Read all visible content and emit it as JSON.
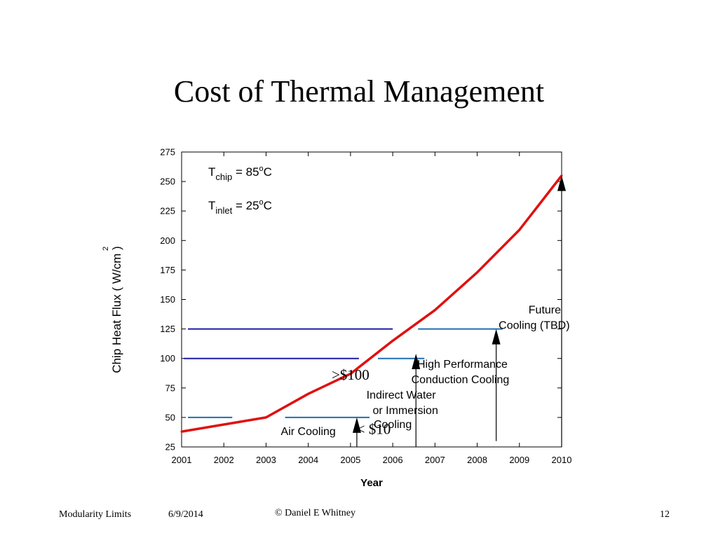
{
  "slide": {
    "title": "Cost of Thermal Management",
    "footer_left": "Modularity Limits",
    "footer_date": "6/9/2014",
    "footer_center": "© Daniel E Whitney",
    "page_number": "12"
  },
  "colors": {
    "curve": "#e01010",
    "level_line_dark": "#1a1aa8",
    "level_line_light": "#1f6fb0",
    "axis": "#000000"
  },
  "chart_data": {
    "type": "line",
    "title": "",
    "xlabel": "Year",
    "ylabel": "Chip Heat Flux ( W/cm )",
    "ylabel_superscript": "2",
    "xlim": [
      2001,
      2010
    ],
    "ylim": [
      25,
      275
    ],
    "x_ticks": [
      2001,
      2002,
      2003,
      2004,
      2005,
      2006,
      2007,
      2008,
      2009,
      2010
    ],
    "y_ticks": [
      25,
      50,
      75,
      100,
      125,
      150,
      175,
      200,
      225,
      250,
      275
    ],
    "grid": false,
    "series": [
      {
        "x": [
          2001,
          2002,
          2003,
          2004,
          2005,
          2006,
          2007,
          2008,
          2009,
          2010
        ],
        "y": [
          38,
          44,
          50,
          70,
          87,
          115,
          141,
          173,
          209,
          255
        ]
      }
    ],
    "level_lines": [
      {
        "y": 125,
        "x_start": 2001.15,
        "x_end": 2006.0,
        "tone": "dark"
      },
      {
        "y": 125,
        "x_start": 2006.6,
        "x_end": 2008.6,
        "tone": "light"
      },
      {
        "y": 100,
        "x_start": 2001.05,
        "x_end": 2005.2,
        "tone": "dark"
      },
      {
        "y": 100,
        "x_start": 2005.65,
        "x_end": 2006.75,
        "tone": "light"
      },
      {
        "y": 50,
        "x_start": 2001.15,
        "x_end": 2002.2,
        "tone": "light"
      },
      {
        "y": 50,
        "x_start": 2003.45,
        "x_end": 2005.45,
        "tone": "light"
      }
    ],
    "conditions": [
      {
        "symbol": "T",
        "subscript": "chip",
        "equals": "=",
        "value": "85",
        "superscript": "o",
        "unit": "C"
      },
      {
        "symbol": "T",
        "subscript": "inlet",
        "equals": "=",
        "value": "25",
        "superscript": "o",
        "unit": "C"
      }
    ],
    "annotations": [
      {
        "text": "Future",
        "x": 2009.6,
        "y": 138
      },
      {
        "text": "Cooling (TBD)",
        "x": 2009.35,
        "y": 125
      },
      {
        "text": "High Performance",
        "x": 2007.65,
        "y": 92
      },
      {
        "text": "Conduction Cooling",
        "x": 2007.6,
        "y": 79
      },
      {
        "text": "Indirect Water",
        "x": 2006.2,
        "y": 66
      },
      {
        "text": "or Immersion",
        "x": 2006.3,
        "y": 53
      },
      {
        "text": "Cooling",
        "x": 2006.0,
        "y": 41
      },
      {
        "text": "Air Cooling",
        "x": 2004.0,
        "y": 35
      },
      {
        "text": ">$100",
        "x": 2005.0,
        "y": 82,
        "serif": true
      },
      {
        "text": "< $10",
        "x": 2005.55,
        "y": 36,
        "serif": true
      }
    ],
    "arrows": [
      {
        "x": 2010.0,
        "y_from": 25,
        "y_to": 255
      },
      {
        "x": 2008.45,
        "y_from": 30,
        "y_to": 125
      },
      {
        "x": 2006.55,
        "y_from": 25,
        "y_to": 104
      },
      {
        "x": 2005.15,
        "y_from": 25,
        "y_to": 50
      }
    ]
  }
}
